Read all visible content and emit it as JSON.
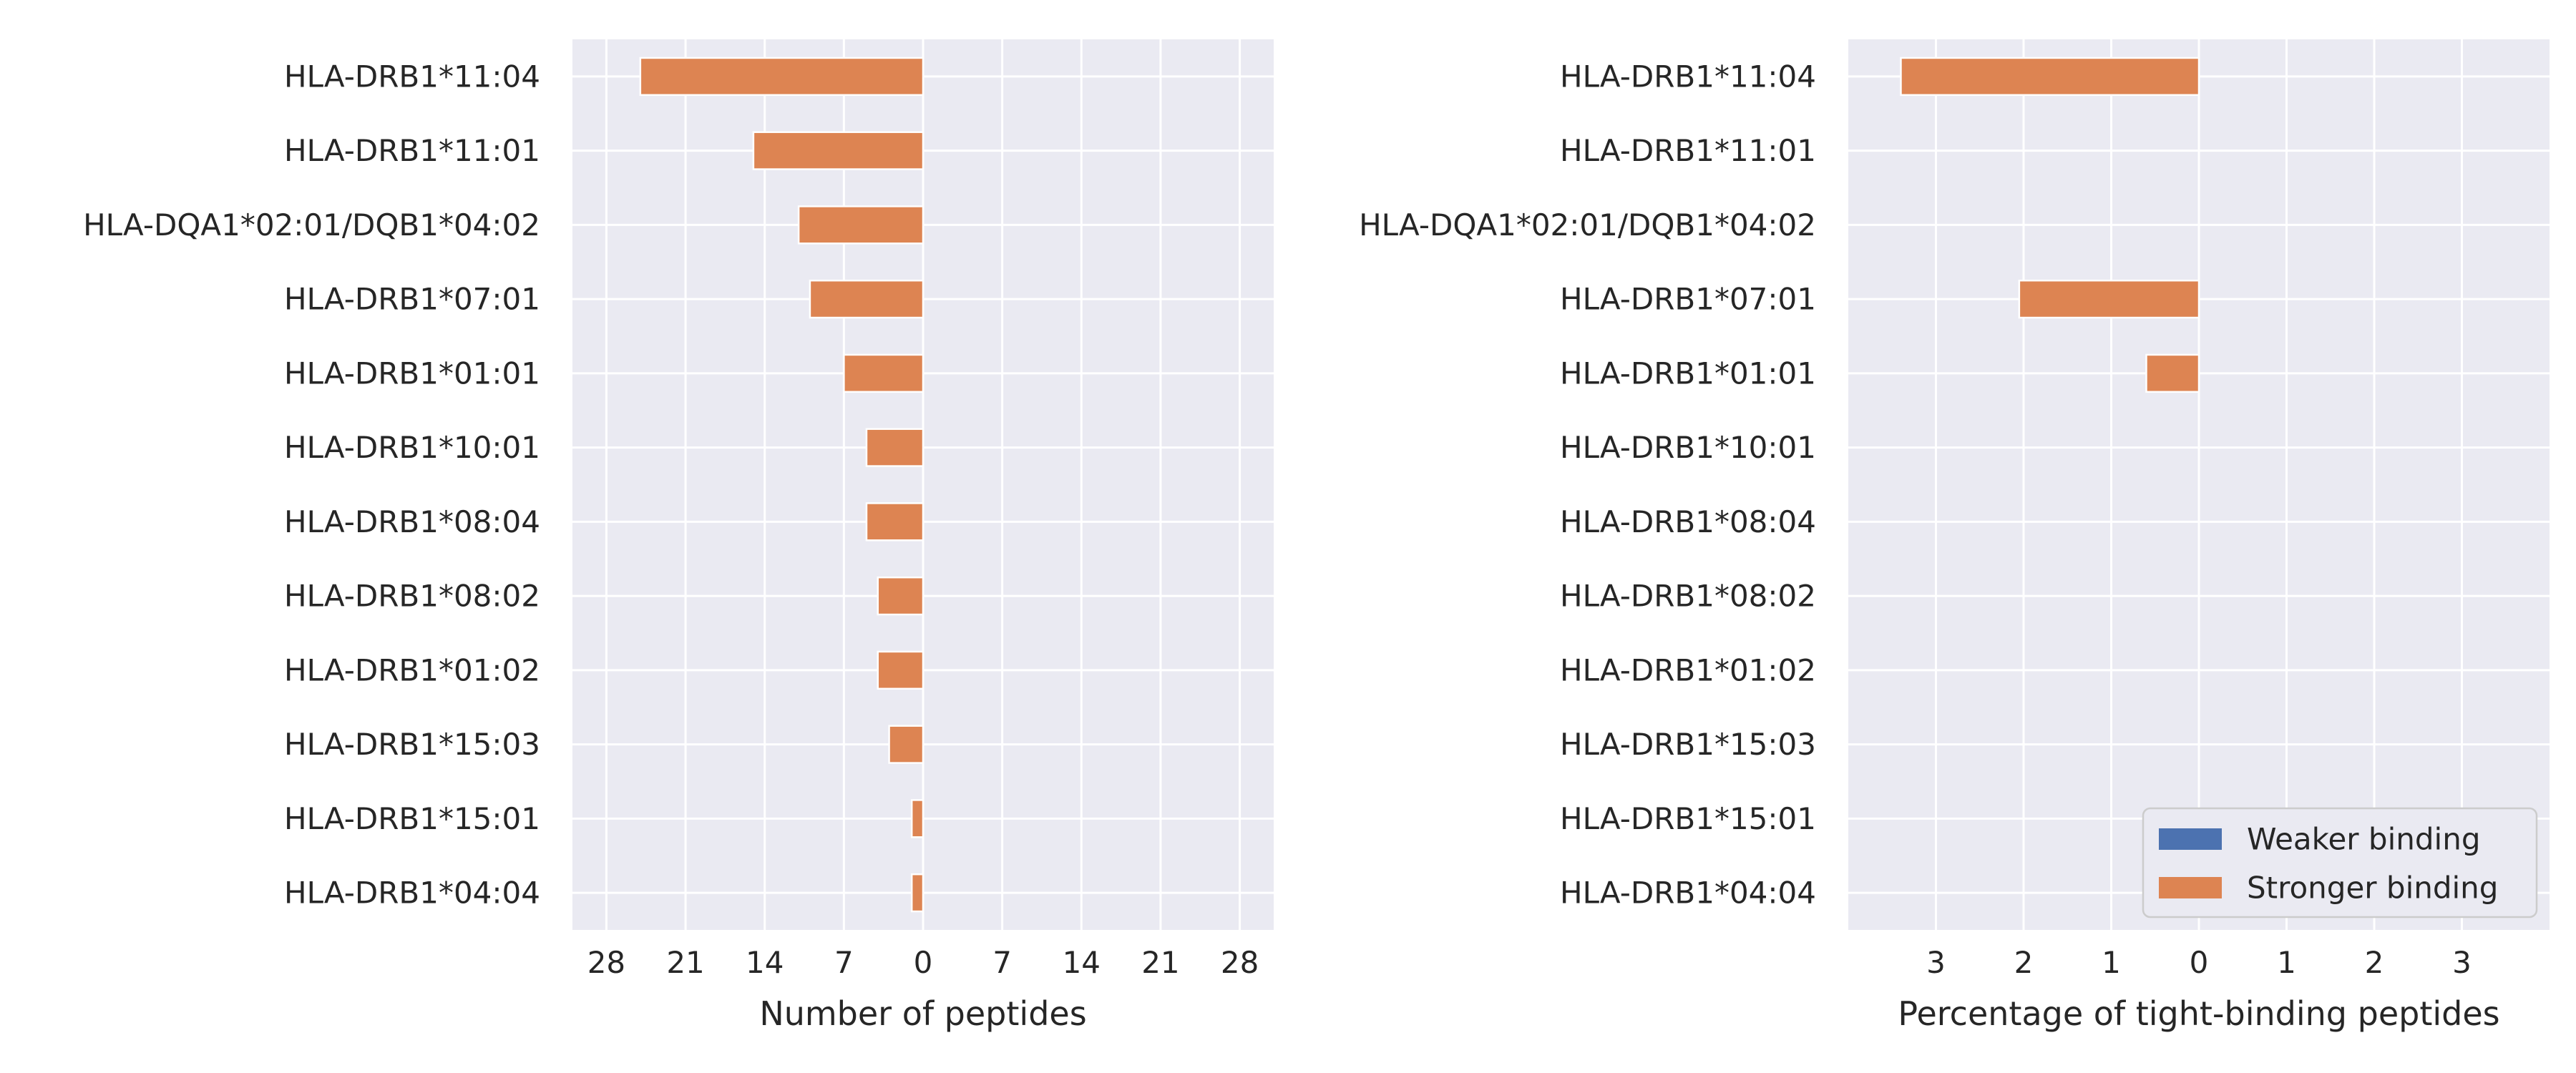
{
  "colors": {
    "background": "#eaeaf2",
    "grid": "#ffffff",
    "weaker": "#4c72b0",
    "stronger": "#dd8452",
    "text": "#262626"
  },
  "chart_data": [
    {
      "type": "bar",
      "orientation": "horizontal",
      "categories": [
        "HLA-DRB1*11:04",
        "HLA-DRB1*11:01",
        "HLA-DQA1*02:01/DQB1*04:02",
        "HLA-DRB1*07:01",
        "HLA-DRB1*01:01",
        "HLA-DRB1*10:01",
        "HLA-DRB1*08:04",
        "HLA-DRB1*08:02",
        "HLA-DRB1*01:02",
        "HLA-DRB1*15:03",
        "HLA-DRB1*15:01",
        "HLA-DRB1*04:04"
      ],
      "series": [
        {
          "name": "Weaker binding",
          "values": [
            0,
            0,
            0,
            0,
            0,
            0,
            0,
            0,
            0,
            0,
            0,
            0
          ]
        },
        {
          "name": "Stronger binding",
          "values": [
            -25,
            -15,
            -11,
            -10,
            -7,
            -5,
            -5,
            -4,
            -4,
            -3,
            -1,
            -1
          ]
        }
      ],
      "xlabel": "Number of peptides",
      "xlim": [
        -31,
        31
      ],
      "xticks": [
        -28,
        -21,
        -14,
        -7,
        0,
        7,
        14,
        21,
        28
      ],
      "xtick_labels": [
        "28",
        "21",
        "14",
        "7",
        "0",
        "7",
        "14",
        "21",
        "28"
      ],
      "grid": true
    },
    {
      "type": "bar",
      "orientation": "horizontal",
      "categories": [
        "HLA-DRB1*11:04",
        "HLA-DRB1*11:01",
        "HLA-DQA1*02:01/DQB1*04:02",
        "HLA-DRB1*07:01",
        "HLA-DRB1*01:01",
        "HLA-DRB1*10:01",
        "HLA-DRB1*08:04",
        "HLA-DRB1*08:02",
        "HLA-DRB1*01:02",
        "HLA-DRB1*15:03",
        "HLA-DRB1*15:01",
        "HLA-DRB1*04:04"
      ],
      "series": [
        {
          "name": "Weaker binding",
          "values": [
            0,
            0,
            0,
            0,
            0,
            0,
            0,
            0,
            0,
            0,
            0,
            0
          ]
        },
        {
          "name": "Stronger binding",
          "values": [
            -3.4,
            0,
            0,
            -2.05,
            -0.6,
            0,
            0,
            0,
            0,
            0,
            0,
            0
          ]
        }
      ],
      "xlabel": "Percentage of tight-binding peptides",
      "xlim": [
        -4.0,
        4.0
      ],
      "xticks": [
        -3,
        -2,
        -1,
        0,
        1,
        2,
        3
      ],
      "xtick_labels": [
        "3",
        "2",
        "1",
        "0",
        "1",
        "2",
        "3"
      ],
      "grid": true,
      "legend": {
        "placement": "lower-right",
        "entries": [
          "Weaker binding",
          "Stronger binding"
        ]
      }
    }
  ]
}
